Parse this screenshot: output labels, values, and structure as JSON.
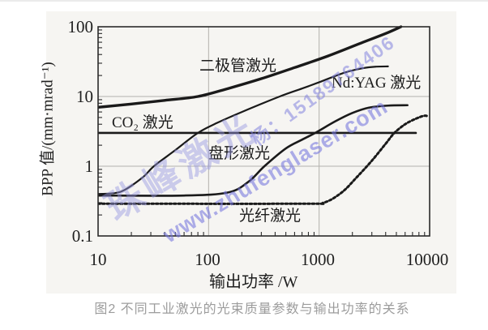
{
  "page": {
    "caption": "图2 不同工业激光的光束质量参数与输出功率的关系"
  },
  "watermark": {
    "brand": "珠峰激光",
    "contact": "杨：15189764406",
    "website": "www.zhufenglaser.com",
    "color": "#8c8cdc"
  },
  "chart_data": {
    "type": "line",
    "title": "",
    "xlabel": "输出功率 /W",
    "ylabel": "BPP 值/(mm·mrad⁻¹)",
    "x_scale": "log",
    "y_scale": "log",
    "xlim": [
      10,
      10000
    ],
    "ylim": [
      0.1,
      100
    ],
    "x_tick_labels": [
      "10",
      "100",
      "1000",
      "10000"
    ],
    "y_tick_labels": [
      "100",
      "10",
      "1",
      "0.1"
    ],
    "x_gridlines": [
      100,
      1000
    ],
    "y_gridlines": [
      1,
      10
    ],
    "legend_position": "labels-on-curves",
    "series": [
      {
        "name": "二极管激光",
        "line_style": "solid",
        "stroke_width": 3.4,
        "points": [
          [
            10,
            7
          ],
          [
            20,
            7.8
          ],
          [
            40,
            8.8
          ],
          [
            80,
            10
          ],
          [
            150,
            13
          ],
          [
            300,
            18
          ],
          [
            600,
            26
          ],
          [
            1200,
            38
          ],
          [
            2500,
            60
          ],
          [
            4000,
            80
          ],
          [
            5500,
            100
          ]
        ]
      },
      {
        "name": "Nd:YAG 激光",
        "line_style": "solid",
        "stroke_width": 2.2,
        "points": [
          [
            10,
            0.4
          ],
          [
            16,
            0.43
          ],
          [
            25,
            0.68
          ],
          [
            32,
            1
          ],
          [
            50,
            1.7
          ],
          [
            80,
            3
          ],
          [
            120,
            4.2
          ],
          [
            200,
            6
          ],
          [
            440,
            10
          ],
          [
            700,
            13
          ],
          [
            1000,
            16
          ],
          [
            1700,
            22
          ],
          [
            2500,
            25.5
          ],
          [
            3300,
            26.8
          ],
          [
            4200,
            27
          ]
        ]
      },
      {
        "name": "CO₂ 激光",
        "line_style": "solid",
        "stroke_width": 2.6,
        "points": [
          [
            10,
            3
          ],
          [
            7500,
            3
          ]
        ]
      },
      {
        "name": "盘形激光",
        "line_style": "solid",
        "stroke_width": 2.6,
        "points": [
          [
            10,
            0.38
          ],
          [
            60,
            0.38
          ],
          [
            150,
            0.42
          ],
          [
            230,
            0.6
          ],
          [
            320,
            1
          ],
          [
            500,
            1.8
          ],
          [
            700,
            2.4
          ],
          [
            920,
            3
          ],
          [
            1400,
            4.4
          ],
          [
            2000,
            5.8
          ],
          [
            2800,
            6.9
          ],
          [
            4200,
            7.4
          ],
          [
            6300,
            7.5
          ]
        ]
      },
      {
        "name": "光纤激光",
        "line_style": "dotted",
        "stroke_width": 3,
        "points": [
          [
            10,
            0.29
          ],
          [
            700,
            0.29
          ],
          [
            1100,
            0.3
          ],
          [
            1600,
            0.42
          ],
          [
            2200,
            0.7
          ],
          [
            3000,
            1.2
          ],
          [
            4000,
            2.1
          ],
          [
            4800,
            3
          ],
          [
            6000,
            4
          ],
          [
            7500,
            4.8
          ],
          [
            9000,
            5.3
          ],
          [
            9800,
            5.1
          ]
        ]
      }
    ],
    "colors": {
      "curve": "#1a1a1a",
      "grid": "#b3b1ad",
      "axis": "#2b2b2b"
    }
  }
}
